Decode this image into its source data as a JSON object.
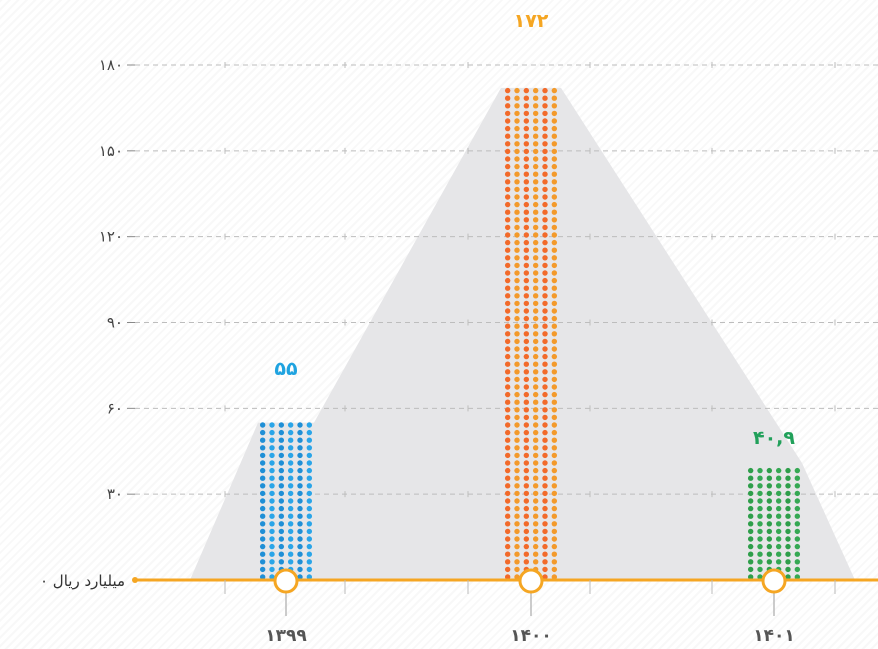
{
  "chart_data": {
    "type": "bar",
    "categories": [
      "۱۳۹۹",
      "۱۴۰۰",
      "۱۴۰۱"
    ],
    "values": [
      55,
      172,
      40.9
    ],
    "value_labels": [
      "۵۵",
      "۱۷۲",
      "۴۰,۹"
    ],
    "ylim": [
      0,
      180
    ],
    "y_ticks": [
      30,
      60,
      90,
      120,
      150,
      180
    ],
    "y_tick_labels": [
      "۳۰",
      "۶۰",
      "۹۰",
      "۱۲۰",
      "۱۵۰",
      "۱۸۰"
    ],
    "zero_label": "۰ میلیارد ریال",
    "grid": true,
    "colors": {
      "bars": [
        "#1f8fd6",
        "#f26a2a",
        "#2e9e4a"
      ],
      "bar_accents": [
        "#2aa5e8",
        "#f39a2b",
        "#35a853"
      ],
      "labels": [
        "#1fa3e0",
        "#f5a623",
        "#21a05a"
      ],
      "baseline": "#f5a623",
      "background_shape": "#e6e6e8",
      "grid": "#bdbdbd"
    }
  }
}
